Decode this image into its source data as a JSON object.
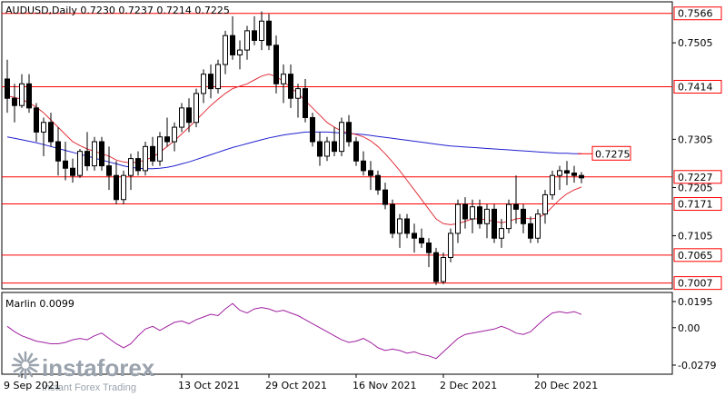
{
  "header": {
    "symbol_line": "AUDUSD,Daily  0.7230 0.7237 0.7214 0.7225"
  },
  "price_levels": [
    {
      "value": 0.7566,
      "label": "0.7566"
    },
    {
      "value": 0.7414,
      "label": "0.7414"
    },
    {
      "value": 0.7227,
      "label": "0.7227"
    },
    {
      "value": 0.7171,
      "label": "0.7171"
    },
    {
      "value": 0.7065,
      "label": "0.7065"
    },
    {
      "value": 0.7007,
      "label": "0.7007"
    }
  ],
  "annotation": {
    "value": 0.7275,
    "label": "0.7275"
  },
  "price_ticks": [
    "0.7505",
    "0.7305",
    "0.7205",
    "0.7105"
  ],
  "price_tick_values": [
    0.7505,
    0.7305,
    0.7205,
    0.7105
  ],
  "date_labels": [
    "9 Sep 2021",
    "13 Oct 2021",
    "29 Oct 2021",
    "16 Nov 2021",
    "2 Dec 2021",
    "20 Dec 2021"
  ],
  "indicator": {
    "label": "Marlin 0.0099",
    "ticks": [
      "0.0195",
      "0.00",
      "-0.0279"
    ],
    "tick_values": [
      0.0195,
      0.0,
      -0.0279
    ]
  },
  "watermark": {
    "brand": "instaforex",
    "tagline": "Instant Forex Trading"
  },
  "colors": {
    "level_line": "#ff0000",
    "ma_fast": "#e0303a",
    "ma_slow": "#2020d0",
    "oscillator": "#a020a0",
    "candle": "#000000",
    "background": "#ffffff"
  },
  "chart_data": {
    "type": "candlestick",
    "price_range": [
      0.6995,
      0.759
    ],
    "indicator_range": [
      -0.0279,
      0.0195
    ],
    "candles": [
      [
        0.743,
        0.747,
        0.736,
        0.739
      ],
      [
        0.739,
        0.742,
        0.734,
        0.7375
      ],
      [
        0.7375,
        0.744,
        0.737,
        0.742
      ],
      [
        0.742,
        0.744,
        0.736,
        0.737
      ],
      [
        0.737,
        0.738,
        0.73,
        0.732
      ],
      [
        0.732,
        0.735,
        0.727,
        0.734
      ],
      [
        0.734,
        0.736,
        0.729,
        0.73
      ],
      [
        0.73,
        0.733,
        0.723,
        0.726
      ],
      [
        0.726,
        0.73,
        0.722,
        0.7245
      ],
      [
        0.7245,
        0.7265,
        0.7215,
        0.723
      ],
      [
        0.723,
        0.7285,
        0.7225,
        0.728
      ],
      [
        0.728,
        0.732,
        0.724,
        0.725
      ],
      [
        0.725,
        0.731,
        0.724,
        0.73
      ],
      [
        0.73,
        0.731,
        0.724,
        0.725
      ],
      [
        0.725,
        0.729,
        0.72,
        0.723
      ],
      [
        0.723,
        0.726,
        0.717,
        0.718
      ],
      [
        0.718,
        0.724,
        0.717,
        0.723
      ],
      [
        0.723,
        0.7275,
        0.72,
        0.7265
      ],
      [
        0.7265,
        0.728,
        0.723,
        0.724
      ],
      [
        0.724,
        0.73,
        0.723,
        0.729
      ],
      [
        0.729,
        0.731,
        0.725,
        0.726
      ],
      [
        0.726,
        0.732,
        0.725,
        0.731
      ],
      [
        0.731,
        0.735,
        0.729,
        0.73
      ],
      [
        0.73,
        0.734,
        0.728,
        0.733
      ],
      [
        0.733,
        0.738,
        0.732,
        0.737
      ],
      [
        0.737,
        0.739,
        0.732,
        0.734
      ],
      [
        0.734,
        0.741,
        0.733,
        0.74
      ],
      [
        0.74,
        0.745,
        0.738,
        0.744
      ],
      [
        0.744,
        0.746,
        0.739,
        0.741
      ],
      [
        0.741,
        0.747,
        0.74,
        0.746
      ],
      [
        0.746,
        0.753,
        0.744,
        0.752
      ],
      [
        0.752,
        0.756,
        0.747,
        0.748
      ],
      [
        0.748,
        0.751,
        0.745,
        0.749
      ],
      [
        0.749,
        0.754,
        0.747,
        0.753
      ],
      [
        0.753,
        0.756,
        0.75,
        0.751
      ],
      [
        0.751,
        0.757,
        0.749,
        0.755
      ],
      [
        0.755,
        0.7565,
        0.749,
        0.75
      ],
      [
        0.75,
        0.752,
        0.74,
        0.742
      ],
      [
        0.742,
        0.746,
        0.738,
        0.744
      ],
      [
        0.744,
        0.746,
        0.737,
        0.739
      ],
      [
        0.739,
        0.742,
        0.735,
        0.741
      ],
      [
        0.741,
        0.743,
        0.734,
        0.735
      ],
      [
        0.735,
        0.736,
        0.729,
        0.73
      ],
      [
        0.73,
        0.732,
        0.725,
        0.727
      ],
      [
        0.727,
        0.731,
        0.726,
        0.73
      ],
      [
        0.73,
        0.733,
        0.727,
        0.728
      ],
      [
        0.728,
        0.735,
        0.727,
        0.734
      ],
      [
        0.734,
        0.7355,
        0.729,
        0.73
      ],
      [
        0.73,
        0.731,
        0.725,
        0.726
      ],
      [
        0.726,
        0.728,
        0.723,
        0.724
      ],
      [
        0.724,
        0.726,
        0.72,
        0.723
      ],
      [
        0.723,
        0.724,
        0.719,
        0.72
      ],
      [
        0.72,
        0.7215,
        0.716,
        0.717
      ],
      [
        0.717,
        0.718,
        0.71,
        0.711
      ],
      [
        0.711,
        0.715,
        0.708,
        0.714
      ],
      [
        0.714,
        0.715,
        0.71,
        0.711
      ],
      [
        0.711,
        0.713,
        0.707,
        0.71
      ],
      [
        0.71,
        0.712,
        0.708,
        0.709
      ],
      [
        0.709,
        0.71,
        0.704,
        0.707
      ],
      [
        0.707,
        0.708,
        0.7003,
        0.701
      ],
      [
        0.701,
        0.707,
        0.7005,
        0.706
      ],
      [
        0.706,
        0.712,
        0.705,
        0.711
      ],
      [
        0.711,
        0.718,
        0.709,
        0.717
      ],
      [
        0.717,
        0.7185,
        0.712,
        0.714
      ],
      [
        0.714,
        0.718,
        0.711,
        0.7165
      ],
      [
        0.7165,
        0.718,
        0.712,
        0.713
      ],
      [
        0.713,
        0.717,
        0.71,
        0.716
      ],
      [
        0.716,
        0.717,
        0.709,
        0.71
      ],
      [
        0.71,
        0.714,
        0.708,
        0.712
      ],
      [
        0.712,
        0.718,
        0.711,
        0.717
      ],
      [
        0.717,
        0.723,
        0.713,
        0.716
      ],
      [
        0.716,
        0.717,
        0.711,
        0.713
      ],
      [
        0.713,
        0.7145,
        0.709,
        0.71
      ],
      [
        0.71,
        0.716,
        0.709,
        0.715
      ],
      [
        0.715,
        0.72,
        0.713,
        0.719
      ],
      [
        0.719,
        0.724,
        0.718,
        0.723
      ],
      [
        0.723,
        0.725,
        0.72,
        0.724
      ],
      [
        0.724,
        0.726,
        0.721,
        0.7235
      ],
      [
        0.7235,
        0.725,
        0.7215,
        0.723
      ],
      [
        0.723,
        0.7237,
        0.7214,
        0.7225
      ]
    ],
    "ma_fast": [
      0.7395,
      0.7392,
      0.7388,
      0.738,
      0.7372,
      0.736,
      0.7345,
      0.733,
      0.7315,
      0.73,
      0.7292,
      0.7285,
      0.728,
      0.7275,
      0.727,
      0.7262,
      0.7258,
      0.7256,
      0.7258,
      0.7262,
      0.7268,
      0.7278,
      0.729,
      0.7302,
      0.7316,
      0.733,
      0.7345,
      0.736,
      0.7375,
      0.7388,
      0.74,
      0.741,
      0.7415,
      0.742,
      0.7428,
      0.7436,
      0.744,
      0.7435,
      0.7425,
      0.7412,
      0.74,
      0.7385,
      0.737,
      0.7355,
      0.734,
      0.733,
      0.7322,
      0.7318,
      0.7315,
      0.731,
      0.7302,
      0.729,
      0.7275,
      0.7258,
      0.724,
      0.722,
      0.72,
      0.718,
      0.716,
      0.714,
      0.713,
      0.7128,
      0.713,
      0.7135,
      0.714,
      0.714,
      0.7138,
      0.7135,
      0.7132,
      0.7135,
      0.714,
      0.7142,
      0.714,
      0.7142,
      0.715,
      0.7165,
      0.718,
      0.7192,
      0.72,
      0.7206
    ],
    "ma_slow": [
      0.731,
      0.7307,
      0.7304,
      0.7301,
      0.7298,
      0.7294,
      0.729,
      0.7286,
      0.7282,
      0.7278,
      0.7274,
      0.727,
      0.7266,
      0.7262,
      0.7258,
      0.7254,
      0.725,
      0.7247,
      0.7245,
      0.7244,
      0.7244,
      0.7245,
      0.7247,
      0.725,
      0.7254,
      0.7258,
      0.7263,
      0.7268,
      0.7273,
      0.7278,
      0.7283,
      0.7288,
      0.7292,
      0.7296,
      0.73,
      0.7304,
      0.7308,
      0.7311,
      0.7314,
      0.7316,
      0.7318,
      0.732,
      0.732,
      0.732,
      0.732,
      0.7319,
      0.7318,
      0.7317,
      0.7316,
      0.7315,
      0.7313,
      0.7311,
      0.7309,
      0.7307,
      0.7305,
      0.7303,
      0.7301,
      0.7299,
      0.7297,
      0.7295,
      0.7293,
      0.7291,
      0.729,
      0.7289,
      0.7288,
      0.7287,
      0.7286,
      0.7285,
      0.7284,
      0.7283,
      0.7282,
      0.7281,
      0.728,
      0.7279,
      0.7278,
      0.7277,
      0.7276,
      0.7276,
      0.7275,
      0.7275
    ],
    "oscillator": [
      0.001,
      -0.003,
      -0.006,
      -0.008,
      -0.01,
      -0.011,
      -0.012,
      -0.012,
      -0.011,
      -0.009,
      -0.008,
      -0.009,
      -0.006,
      -0.004,
      -0.008,
      -0.012,
      -0.015,
      -0.012,
      -0.006,
      -0.001,
      0.001,
      -0.002,
      0.001,
      0.004,
      0.005,
      0.003,
      0.006,
      0.008,
      0.01,
      0.009,
      0.014,
      0.018,
      0.013,
      0.011,
      0.014,
      0.015,
      0.014,
      0.012,
      0.013,
      0.011,
      0.009,
      0.006,
      0.003,
      0.0,
      -0.003,
      -0.006,
      -0.009,
      -0.011,
      -0.01,
      -0.008,
      -0.011,
      -0.015,
      -0.017,
      -0.016,
      -0.017,
      -0.019,
      -0.018,
      -0.02,
      -0.021,
      -0.023,
      -0.018,
      -0.013,
      -0.008,
      -0.005,
      -0.004,
      -0.003,
      -0.002,
      -0.001,
      0.001,
      -0.001,
      -0.004,
      -0.005,
      -0.003,
      0.002,
      0.007,
      0.011,
      0.012,
      0.011,
      0.012,
      0.0099
    ]
  }
}
